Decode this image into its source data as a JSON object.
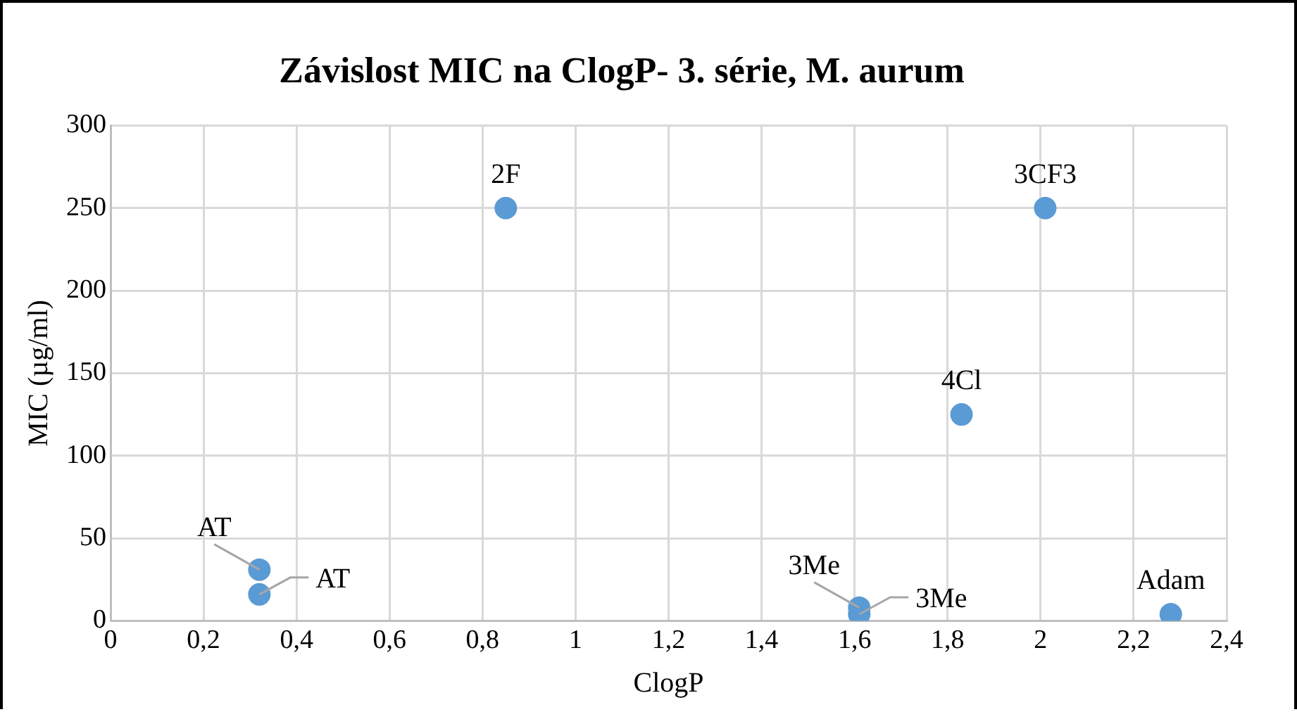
{
  "chart_data": {
    "type": "scatter",
    "title": "Závislost MIC na ClogP- 3. série, M. aurum",
    "xlabel": "ClogP",
    "ylabel": "MIC (µg/ml)",
    "series": [
      {
        "color": "#5b9bd5",
        "x": [
          0.32,
          0.32,
          0.85,
          2.01,
          1.83,
          1.61,
          1.61,
          2.28
        ],
        "values": [
          31,
          16,
          250,
          250,
          125,
          8,
          4,
          4
        ]
      }
    ],
    "xlim": [
      0,
      2.4
    ],
    "xticks": [
      {
        "value": 0,
        "label": "0"
      },
      {
        "value": 0.2,
        "label": "0,2"
      },
      {
        "value": 0.4,
        "label": "0,4"
      },
      {
        "value": 0.6,
        "label": "0,6"
      },
      {
        "value": 0.8,
        "label": "0,8"
      },
      {
        "value": 1,
        "label": "1"
      },
      {
        "value": 1.2,
        "label": "1,2"
      },
      {
        "value": 1.4,
        "label": "1,4"
      },
      {
        "value": 1.6,
        "label": "1,6"
      },
      {
        "value": 1.8,
        "label": "1,8"
      },
      {
        "value": 2,
        "label": "2"
      },
      {
        "value": 2.2,
        "label": "2,2"
      },
      {
        "value": 2.4,
        "label": "2,4"
      }
    ],
    "ylim": [
      0,
      300
    ],
    "yticks": [
      0,
      50,
      100,
      150,
      200,
      250,
      300
    ],
    "grid": true,
    "legend": false,
    "marker": "circle",
    "annotations": [
      {
        "text": "AT",
        "x": 0.32,
        "y": 31
      },
      {
        "text": "AT",
        "x": 0.32,
        "y": 16
      },
      {
        "text": "2F",
        "x": 0.85,
        "y": 250
      },
      {
        "text": "3CF3",
        "x": 2.01,
        "y": 250
      },
      {
        "text": "4Cl",
        "x": 1.83,
        "y": 125
      },
      {
        "text": "3Me",
        "x": 1.61,
        "y": 8
      },
      {
        "text": "3Me",
        "x": 1.61,
        "y": 4
      },
      {
        "text": "Adam",
        "x": 2.28,
        "y": 4
      }
    ]
  }
}
